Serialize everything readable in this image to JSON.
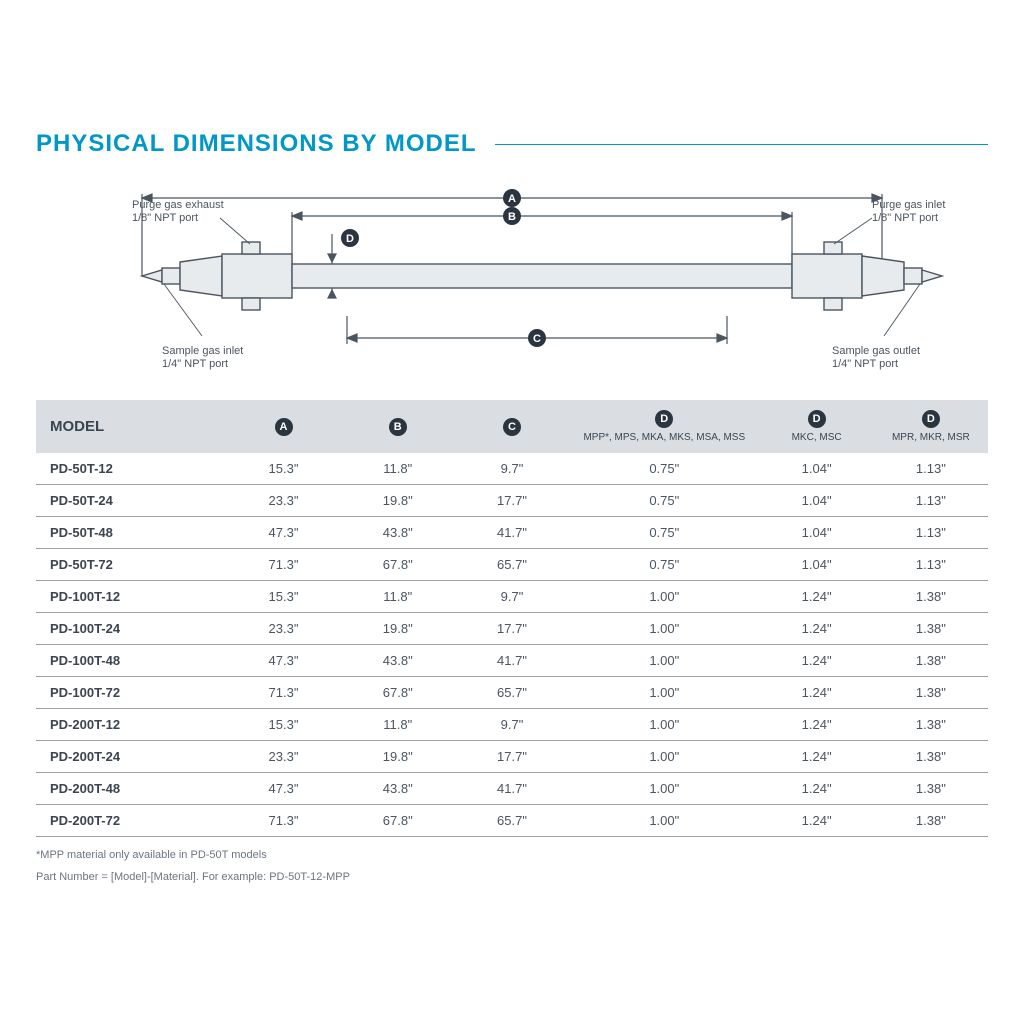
{
  "page": {
    "title": "PHYSICAL DIMENSIONS BY MODEL",
    "title_color": "#0097c9",
    "title_fontsize": 24,
    "background": "#ffffff"
  },
  "diagram": {
    "labels": {
      "purge_exhaust": "Purge gas exhaust",
      "purge_exhaust_sub": "1/8\" NPT port",
      "purge_inlet": "Purge gas inlet",
      "purge_inlet_sub": "1/8\" NPT port",
      "sample_inlet": "Sample gas inlet",
      "sample_inlet_sub": "1/4\" NPT port",
      "sample_outlet": "Sample gas outlet",
      "sample_outlet_sub": "1/4\" NPT port"
    },
    "dim_markers": {
      "a": "A",
      "b": "B",
      "c": "C",
      "d": "D"
    },
    "stroke_color": "#4a5560",
    "fill_light": "#e8ebee",
    "badge_bg": "#2b3540",
    "badge_fg": "#ffffff"
  },
  "table": {
    "header_bg": "#dadee2",
    "row_border": "#9aa3ad",
    "columns": {
      "model": "MODEL",
      "a": "A",
      "b": "B",
      "c": "C",
      "d1_badge": "D",
      "d1_sub": "MPP*, MPS, MKA, MKS, MSA, MSS",
      "d2_badge": "D",
      "d2_sub": "MKC, MSC",
      "d3_badge": "D",
      "d3_sub": "MPR, MKR, MSR"
    },
    "rows": [
      {
        "model": "PD-50T-12",
        "a": "15.3\"",
        "b": "11.8\"",
        "c": "9.7\"",
        "d1": "0.75\"",
        "d2": "1.04\"",
        "d3": "1.13\""
      },
      {
        "model": "PD-50T-24",
        "a": "23.3\"",
        "b": "19.8\"",
        "c": "17.7\"",
        "d1": "0.75\"",
        "d2": "1.04\"",
        "d3": "1.13\""
      },
      {
        "model": "PD-50T-48",
        "a": "47.3\"",
        "b": "43.8\"",
        "c": "41.7\"",
        "d1": "0.75\"",
        "d2": "1.04\"",
        "d3": "1.13\""
      },
      {
        "model": "PD-50T-72",
        "a": "71.3\"",
        "b": "67.8\"",
        "c": "65.7\"",
        "d1": "0.75\"",
        "d2": "1.04\"",
        "d3": "1.13\""
      },
      {
        "model": "PD-100T-12",
        "a": "15.3\"",
        "b": "11.8\"",
        "c": "9.7\"",
        "d1": "1.00\"",
        "d2": "1.24\"",
        "d3": "1.38\""
      },
      {
        "model": "PD-100T-24",
        "a": "23.3\"",
        "b": "19.8\"",
        "c": "17.7\"",
        "d1": "1.00\"",
        "d2": "1.24\"",
        "d3": "1.38\""
      },
      {
        "model": "PD-100T-48",
        "a": "47.3\"",
        "b": "43.8\"",
        "c": "41.7\"",
        "d1": "1.00\"",
        "d2": "1.24\"",
        "d3": "1.38\""
      },
      {
        "model": "PD-100T-72",
        "a": "71.3\"",
        "b": "67.8\"",
        "c": "65.7\"",
        "d1": "1.00\"",
        "d2": "1.24\"",
        "d3": "1.38\""
      },
      {
        "model": "PD-200T-12",
        "a": "15.3\"",
        "b": "11.8\"",
        "c": "9.7\"",
        "d1": "1.00\"",
        "d2": "1.24\"",
        "d3": "1.38\""
      },
      {
        "model": "PD-200T-24",
        "a": "23.3\"",
        "b": "19.8\"",
        "c": "17.7\"",
        "d1": "1.00\"",
        "d2": "1.24\"",
        "d3": "1.38\""
      },
      {
        "model": "PD-200T-48",
        "a": "47.3\"",
        "b": "43.8\"",
        "c": "41.7\"",
        "d1": "1.00\"",
        "d2": "1.24\"",
        "d3": "1.38\""
      },
      {
        "model": "PD-200T-72",
        "a": "71.3\"",
        "b": "67.8\"",
        "c": "65.7\"",
        "d1": "1.00\"",
        "d2": "1.24\"",
        "d3": "1.38\""
      }
    ]
  },
  "footnotes": {
    "note1": "*MPP material only available in PD-50T models",
    "note2": "Part Number = [Model]-[Material]. For example: PD-50T-12-MPP"
  }
}
